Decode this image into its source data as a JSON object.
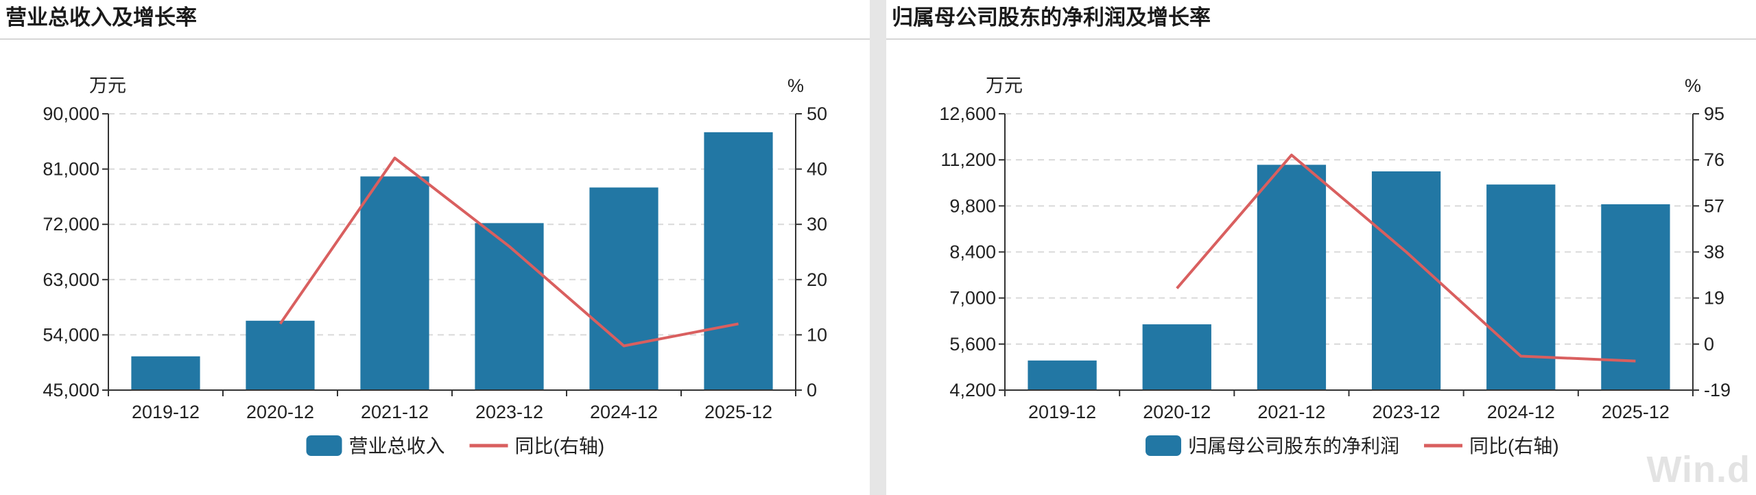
{
  "colors": {
    "bar": "#2277a4",
    "line": "#d95f5f",
    "grid": "#d9d9d9",
    "axis": "#333333"
  },
  "watermark": "Win.d",
  "chart_data": [
    {
      "type": "bar",
      "title": "营业总收入及增长率",
      "ylabel": "万元",
      "y2label": "%",
      "categories": [
        "2019-12",
        "2020-12",
        "2021-12",
        "2023-12",
        "2024-12",
        "2025-12"
      ],
      "series": [
        {
          "name": "营业总收入",
          "type": "bar",
          "axis": "left",
          "values": [
            50500,
            56300,
            79800,
            72200,
            78000,
            87000
          ]
        },
        {
          "name": "同比(右轴)",
          "type": "line",
          "axis": "right",
          "values": [
            null,
            12,
            42,
            26,
            8,
            12
          ]
        }
      ],
      "ylim": [
        45000,
        90000
      ],
      "yticks": [
        "45,000",
        "54,000",
        "63,000",
        "72,000",
        "81,000",
        "90,000"
      ],
      "y2lim": [
        0,
        50
      ],
      "y2ticks": [
        "0",
        "10",
        "20",
        "30",
        "40",
        "50"
      ],
      "grid": true,
      "legend": "bottom-center"
    },
    {
      "type": "bar",
      "title": "归属母公司股东的净利润及增长率",
      "ylabel": "万元",
      "y2label": "%",
      "categories": [
        "2019-12",
        "2020-12",
        "2021-12",
        "2023-12",
        "2024-12",
        "2025-12"
      ],
      "series": [
        {
          "name": "归属母公司股东的净利润",
          "type": "bar",
          "axis": "left",
          "values": [
            5100,
            6200,
            11050,
            10850,
            10450,
            9850
          ]
        },
        {
          "name": "同比(右轴)",
          "type": "line",
          "axis": "right",
          "values": [
            null,
            23,
            78,
            38,
            -5,
            -7
          ]
        }
      ],
      "ylim": [
        4200,
        12600
      ],
      "yticks": [
        "4,200",
        "5,600",
        "7,000",
        "8,400",
        "9,800",
        "11,200",
        "12,600"
      ],
      "y2lim": [
        -19,
        95
      ],
      "y2ticks": [
        "-19",
        "0",
        "19",
        "38",
        "57",
        "76",
        "95"
      ],
      "grid": true,
      "legend": "bottom-center"
    }
  ]
}
